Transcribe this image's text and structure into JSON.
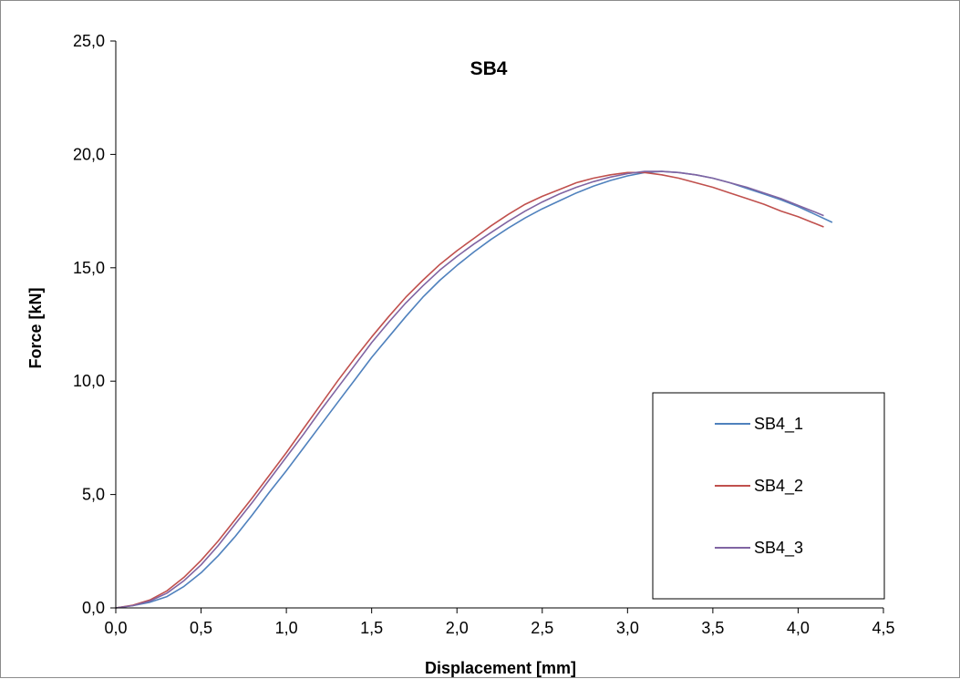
{
  "chart_data": {
    "type": "line",
    "title": "SB4",
    "xlabel": "Displacement [mm]",
    "ylabel": "Force [kN]",
    "xlim": [
      0,
      4.5
    ],
    "ylim": [
      0,
      25
    ],
    "xticks": [
      "0,0",
      "0,5",
      "1,0",
      "1,5",
      "2,0",
      "2,5",
      "3,0",
      "3,5",
      "4,0",
      "4,5"
    ],
    "yticks": [
      "0,0",
      "5,0",
      "10,0",
      "15,0",
      "20,0",
      "25,0"
    ],
    "grid": false,
    "legend_position": "right",
    "series": [
      {
        "name": "SB4_1",
        "color": "#4f81bd",
        "points": [
          [
            0.0,
            0.0
          ],
          [
            0.1,
            0.1
          ],
          [
            0.2,
            0.25
          ],
          [
            0.3,
            0.5
          ],
          [
            0.4,
            0.95
          ],
          [
            0.5,
            1.55
          ],
          [
            0.6,
            2.3
          ],
          [
            0.7,
            3.15
          ],
          [
            0.8,
            4.1
          ],
          [
            0.9,
            5.1
          ],
          [
            1.0,
            6.05
          ],
          [
            1.1,
            7.05
          ],
          [
            1.2,
            8.05
          ],
          [
            1.3,
            9.05
          ],
          [
            1.4,
            10.05
          ],
          [
            1.5,
            11.05
          ],
          [
            1.6,
            11.95
          ],
          [
            1.7,
            12.85
          ],
          [
            1.8,
            13.7
          ],
          [
            1.9,
            14.45
          ],
          [
            2.0,
            15.1
          ],
          [
            2.1,
            15.7
          ],
          [
            2.2,
            16.25
          ],
          [
            2.3,
            16.75
          ],
          [
            2.4,
            17.2
          ],
          [
            2.5,
            17.6
          ],
          [
            2.6,
            17.95
          ],
          [
            2.7,
            18.3
          ],
          [
            2.8,
            18.6
          ],
          [
            2.9,
            18.85
          ],
          [
            3.0,
            19.05
          ],
          [
            3.1,
            19.2
          ],
          [
            3.2,
            19.25
          ],
          [
            3.3,
            19.2
          ],
          [
            3.4,
            19.1
          ],
          [
            3.5,
            18.95
          ],
          [
            3.6,
            18.75
          ],
          [
            3.7,
            18.5
          ],
          [
            3.8,
            18.25
          ],
          [
            3.9,
            18.0
          ],
          [
            4.0,
            17.7
          ],
          [
            4.1,
            17.35
          ],
          [
            4.2,
            17.0
          ]
        ]
      },
      {
        "name": "SB4_2",
        "color": "#c0504d",
        "points": [
          [
            0.0,
            0.0
          ],
          [
            0.1,
            0.12
          ],
          [
            0.2,
            0.35
          ],
          [
            0.3,
            0.75
          ],
          [
            0.4,
            1.35
          ],
          [
            0.5,
            2.1
          ],
          [
            0.6,
            2.95
          ],
          [
            0.7,
            3.9
          ],
          [
            0.8,
            4.85
          ],
          [
            0.9,
            5.85
          ],
          [
            1.0,
            6.85
          ],
          [
            1.1,
            7.9
          ],
          [
            1.2,
            8.95
          ],
          [
            1.3,
            10.0
          ],
          [
            1.4,
            11.0
          ],
          [
            1.5,
            11.95
          ],
          [
            1.6,
            12.85
          ],
          [
            1.7,
            13.7
          ],
          [
            1.8,
            14.45
          ],
          [
            1.9,
            15.15
          ],
          [
            2.0,
            15.75
          ],
          [
            2.1,
            16.3
          ],
          [
            2.2,
            16.85
          ],
          [
            2.3,
            17.35
          ],
          [
            2.4,
            17.8
          ],
          [
            2.5,
            18.15
          ],
          [
            2.6,
            18.45
          ],
          [
            2.7,
            18.75
          ],
          [
            2.8,
            18.95
          ],
          [
            2.9,
            19.1
          ],
          [
            3.0,
            19.2
          ],
          [
            3.1,
            19.2
          ],
          [
            3.2,
            19.1
          ],
          [
            3.3,
            18.95
          ],
          [
            3.4,
            18.75
          ],
          [
            3.5,
            18.55
          ],
          [
            3.6,
            18.3
          ],
          [
            3.7,
            18.05
          ],
          [
            3.8,
            17.8
          ],
          [
            3.9,
            17.5
          ],
          [
            4.0,
            17.25
          ],
          [
            4.1,
            16.95
          ],
          [
            4.15,
            16.8
          ]
        ]
      },
      {
        "name": "SB4_3",
        "color": "#8064a2",
        "points": [
          [
            0.0,
            0.0
          ],
          [
            0.1,
            0.1
          ],
          [
            0.2,
            0.3
          ],
          [
            0.3,
            0.65
          ],
          [
            0.4,
            1.2
          ],
          [
            0.5,
            1.9
          ],
          [
            0.6,
            2.75
          ],
          [
            0.7,
            3.7
          ],
          [
            0.8,
            4.65
          ],
          [
            0.9,
            5.65
          ],
          [
            1.0,
            6.65
          ],
          [
            1.1,
            7.65
          ],
          [
            1.2,
            8.7
          ],
          [
            1.3,
            9.7
          ],
          [
            1.4,
            10.7
          ],
          [
            1.5,
            11.7
          ],
          [
            1.6,
            12.6
          ],
          [
            1.7,
            13.45
          ],
          [
            1.8,
            14.2
          ],
          [
            1.9,
            14.9
          ],
          [
            2.0,
            15.5
          ],
          [
            2.1,
            16.05
          ],
          [
            2.2,
            16.55
          ],
          [
            2.3,
            17.05
          ],
          [
            2.4,
            17.5
          ],
          [
            2.5,
            17.9
          ],
          [
            2.6,
            18.25
          ],
          [
            2.7,
            18.55
          ],
          [
            2.8,
            18.8
          ],
          [
            2.9,
            19.0
          ],
          [
            3.0,
            19.15
          ],
          [
            3.1,
            19.25
          ],
          [
            3.2,
            19.25
          ],
          [
            3.3,
            19.2
          ],
          [
            3.4,
            19.1
          ],
          [
            3.5,
            18.95
          ],
          [
            3.6,
            18.75
          ],
          [
            3.7,
            18.55
          ],
          [
            3.8,
            18.3
          ],
          [
            3.9,
            18.05
          ],
          [
            4.0,
            17.75
          ],
          [
            4.1,
            17.45
          ],
          [
            4.15,
            17.3
          ]
        ]
      }
    ]
  }
}
